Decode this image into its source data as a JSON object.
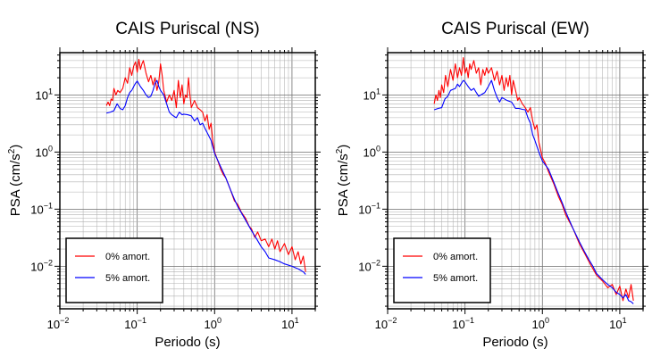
{
  "chart_data": [
    {
      "type": "line",
      "title": "CAIS Puriscal (NS)",
      "xlabel": "Periodo (s)",
      "ylabel_base": "PSA (cm/s",
      "ylabel_sup": "2",
      "ylabel_end": ")",
      "x_scale": "log",
      "y_scale": "log",
      "xlim": [
        0.01,
        20
      ],
      "ylim": [
        0.0018,
        55
      ],
      "x_ticks": [
        {
          "value": 0.01,
          "base": "10",
          "exp": "−2"
        },
        {
          "value": 0.1,
          "base": "10",
          "exp": "−1"
        },
        {
          "value": 1,
          "base": "10",
          "exp": "0"
        },
        {
          "value": 10,
          "base": "10",
          "exp": "1"
        }
      ],
      "y_ticks": [
        {
          "value": 0.01,
          "base": "10",
          "exp": "−2"
        },
        {
          "value": 0.1,
          "base": "10",
          "exp": "−1"
        },
        {
          "value": 1,
          "base": "10",
          "exp": "0"
        },
        {
          "value": 10,
          "base": "10",
          "exp": "1"
        }
      ],
      "grid": true,
      "legend_position": "bottom-left",
      "series": [
        {
          "name": "0% amort.",
          "color": "#ff0000",
          "x": [
            0.04,
            0.042,
            0.044,
            0.046,
            0.048,
            0.05,
            0.053,
            0.056,
            0.06,
            0.065,
            0.07,
            0.075,
            0.08,
            0.085,
            0.09,
            0.095,
            0.1,
            0.105,
            0.11,
            0.115,
            0.12,
            0.13,
            0.14,
            0.15,
            0.16,
            0.17,
            0.18,
            0.19,
            0.2,
            0.21,
            0.22,
            0.24,
            0.26,
            0.28,
            0.3,
            0.32,
            0.34,
            0.36,
            0.38,
            0.4,
            0.42,
            0.44,
            0.46,
            0.48,
            0.5,
            0.55,
            0.6,
            0.65,
            0.7,
            0.75,
            0.8,
            0.85,
            0.9,
            0.95,
            1.0,
            1.1,
            1.2,
            1.3,
            1.4,
            1.6,
            1.8,
            2.0,
            2.2,
            2.5,
            2.8,
            3.0,
            3.3,
            3.6,
            4.0,
            4.5,
            5.0,
            5.5,
            6.0,
            6.5,
            7.0,
            8.0,
            9.0,
            10.0,
            11.0,
            12.0,
            13.0,
            14.0,
            15.0
          ],
          "y": [
            6.5,
            7.5,
            6.5,
            8.5,
            8.0,
            13.0,
            10.0,
            12.0,
            11.0,
            13.0,
            20.0,
            16.0,
            30.0,
            22.0,
            32.0,
            38.0,
            25.0,
            42.0,
            28.0,
            35.0,
            40.0,
            24.0,
            17.0,
            22.0,
            15.0,
            20.0,
            12.0,
            17.0,
            35.0,
            22.0,
            12.0,
            7.5,
            10.0,
            8.0,
            12.0,
            6.0,
            18.0,
            9.0,
            15.0,
            7.0,
            10.0,
            9.0,
            20.0,
            10.0,
            6.0,
            8.0,
            6.0,
            5.5,
            5.0,
            3.5,
            4.5,
            2.5,
            3.2,
            1.5,
            1.0,
            0.7,
            0.5,
            0.4,
            0.35,
            0.22,
            0.14,
            0.12,
            0.09,
            0.07,
            0.05,
            0.045,
            0.032,
            0.04,
            0.028,
            0.03,
            0.022,
            0.03,
            0.02,
            0.028,
            0.018,
            0.025,
            0.016,
            0.022,
            0.013,
            0.018,
            0.011,
            0.015,
            0.008
          ]
        },
        {
          "name": "5% amort.",
          "color": "#0000ff",
          "x": [
            0.04,
            0.045,
            0.05,
            0.055,
            0.06,
            0.065,
            0.07,
            0.075,
            0.08,
            0.085,
            0.09,
            0.095,
            0.1,
            0.11,
            0.12,
            0.13,
            0.14,
            0.15,
            0.16,
            0.17,
            0.18,
            0.19,
            0.2,
            0.22,
            0.24,
            0.26,
            0.28,
            0.3,
            0.32,
            0.35,
            0.38,
            0.4,
            0.45,
            0.5,
            0.55,
            0.6,
            0.65,
            0.7,
            0.75,
            0.8,
            0.9,
            1.0,
            1.2,
            1.4,
            1.6,
            1.8,
            2.0,
            2.5,
            3.0,
            3.5,
            4.0,
            4.5,
            5.0,
            6.0,
            7.0,
            8.0,
            10.0,
            12.0,
            14.0,
            15.0
          ],
          "y": [
            4.8,
            5.0,
            5.3,
            7.0,
            5.8,
            5.5,
            6.5,
            9.0,
            11.0,
            12.0,
            14.0,
            16.0,
            17.5,
            14.0,
            12.0,
            10.0,
            9.0,
            9.5,
            12.0,
            16.0,
            18.0,
            14.0,
            12.0,
            10.0,
            7.0,
            5.0,
            4.5,
            4.2,
            4.0,
            5.0,
            4.5,
            4.6,
            4.5,
            4.3,
            3.5,
            4.0,
            3.0,
            3.2,
            2.6,
            2.2,
            1.6,
            0.95,
            0.55,
            0.35,
            0.22,
            0.15,
            0.11,
            0.065,
            0.042,
            0.03,
            0.022,
            0.018,
            0.014,
            0.013,
            0.012,
            0.011,
            0.01,
            0.009,
            0.008,
            0.0072
          ]
        }
      ]
    },
    {
      "type": "line",
      "title": "CAIS Puriscal (EW)",
      "xlabel": "Periodo (s)",
      "ylabel_base": "PSA (cm/s",
      "ylabel_sup": "2",
      "ylabel_end": ")",
      "x_scale": "log",
      "y_scale": "log",
      "xlim": [
        0.01,
        20
      ],
      "ylim": [
        0.0018,
        55
      ],
      "x_ticks": [
        {
          "value": 0.01,
          "base": "10",
          "exp": "−2"
        },
        {
          "value": 0.1,
          "base": "10",
          "exp": "−1"
        },
        {
          "value": 1,
          "base": "10",
          "exp": "0"
        },
        {
          "value": 10,
          "base": "10",
          "exp": "1"
        }
      ],
      "y_ticks": [
        {
          "value": 0.01,
          "base": "10",
          "exp": "−2"
        },
        {
          "value": 0.1,
          "base": "10",
          "exp": "−1"
        },
        {
          "value": 1,
          "base": "10",
          "exp": "0"
        },
        {
          "value": 10,
          "base": "10",
          "exp": "1"
        }
      ],
      "grid": true,
      "legend_position": "bottom-left",
      "series": [
        {
          "name": "0% amort.",
          "color": "#ff0000",
          "x": [
            0.04,
            0.042,
            0.044,
            0.046,
            0.048,
            0.05,
            0.053,
            0.056,
            0.06,
            0.065,
            0.07,
            0.075,
            0.08,
            0.085,
            0.09,
            0.095,
            0.1,
            0.105,
            0.11,
            0.115,
            0.12,
            0.13,
            0.14,
            0.15,
            0.16,
            0.17,
            0.18,
            0.19,
            0.2,
            0.22,
            0.24,
            0.26,
            0.28,
            0.3,
            0.32,
            0.34,
            0.36,
            0.38,
            0.4,
            0.42,
            0.45,
            0.48,
            0.5,
            0.55,
            0.6,
            0.65,
            0.7,
            0.75,
            0.8,
            0.85,
            0.9,
            1.0,
            1.1,
            1.2,
            1.4,
            1.6,
            1.8,
            2.0,
            2.5,
            3.0,
            3.5,
            4.0,
            4.5,
            5.0,
            6.0,
            7.0,
            8.0,
            9.0,
            10.0,
            11.0,
            12.0,
            13.0,
            14.0,
            15.0
          ],
          "y": [
            7.0,
            10.0,
            8.0,
            12.0,
            9.0,
            15.0,
            11.0,
            22.0,
            14.0,
            28.0,
            18.0,
            35.0,
            20.0,
            30.0,
            22.0,
            45.0,
            24.0,
            30.0,
            20.0,
            35.0,
            28.0,
            40.0,
            24.0,
            30.0,
            15.0,
            28.0,
            22.0,
            30.0,
            24.0,
            30.0,
            18.0,
            26.0,
            15.0,
            22.0,
            12.0,
            20.0,
            14.0,
            22.0,
            10.0,
            18.0,
            12.0,
            8.0,
            9.0,
            7.0,
            6.0,
            5.0,
            6.0,
            3.5,
            2.5,
            3.0,
            1.5,
            0.8,
            0.62,
            0.45,
            0.28,
            0.17,
            0.12,
            0.08,
            0.045,
            0.025,
            0.017,
            0.012,
            0.009,
            0.007,
            0.0055,
            0.0042,
            0.0048,
            0.0032,
            0.0045,
            0.0025,
            0.004,
            0.0028,
            0.0048,
            0.0025
          ]
        },
        {
          "name": "5% amort.",
          "color": "#0000ff",
          "x": [
            0.04,
            0.045,
            0.05,
            0.055,
            0.06,
            0.065,
            0.07,
            0.075,
            0.08,
            0.085,
            0.09,
            0.095,
            0.1,
            0.11,
            0.12,
            0.13,
            0.14,
            0.15,
            0.16,
            0.17,
            0.18,
            0.2,
            0.22,
            0.24,
            0.26,
            0.28,
            0.3,
            0.35,
            0.4,
            0.45,
            0.5,
            0.55,
            0.6,
            0.65,
            0.7,
            0.75,
            0.8,
            0.9,
            1.0,
            1.2,
            1.4,
            1.6,
            1.8,
            2.0,
            2.5,
            3.0,
            3.5,
            4.0,
            4.5,
            5.0,
            6.0,
            7.0,
            8.0,
            9.0,
            10.0,
            11.0,
            12.0,
            13.0,
            14.0,
            15.0
          ],
          "y": [
            5.5,
            5.8,
            6.0,
            8.5,
            9.5,
            12.0,
            12.5,
            13.0,
            15.5,
            14.0,
            16.0,
            18.0,
            17.0,
            14.0,
            12.0,
            13.0,
            11.0,
            9.5,
            10.0,
            10.5,
            11.0,
            14.0,
            18.0,
            12.0,
            9.0,
            7.5,
            9.0,
            8.0,
            7.5,
            5.8,
            5.8,
            5.6,
            5.5,
            4.0,
            3.2,
            2.0,
            1.6,
            1.0,
            0.7,
            0.5,
            0.3,
            0.19,
            0.13,
            0.09,
            0.045,
            0.027,
            0.018,
            0.013,
            0.01,
            0.0075,
            0.0058,
            0.0048,
            0.0042,
            0.0035,
            0.0032,
            0.0028,
            0.0032,
            0.0025,
            0.0024,
            0.0022
          ]
        }
      ]
    }
  ]
}
